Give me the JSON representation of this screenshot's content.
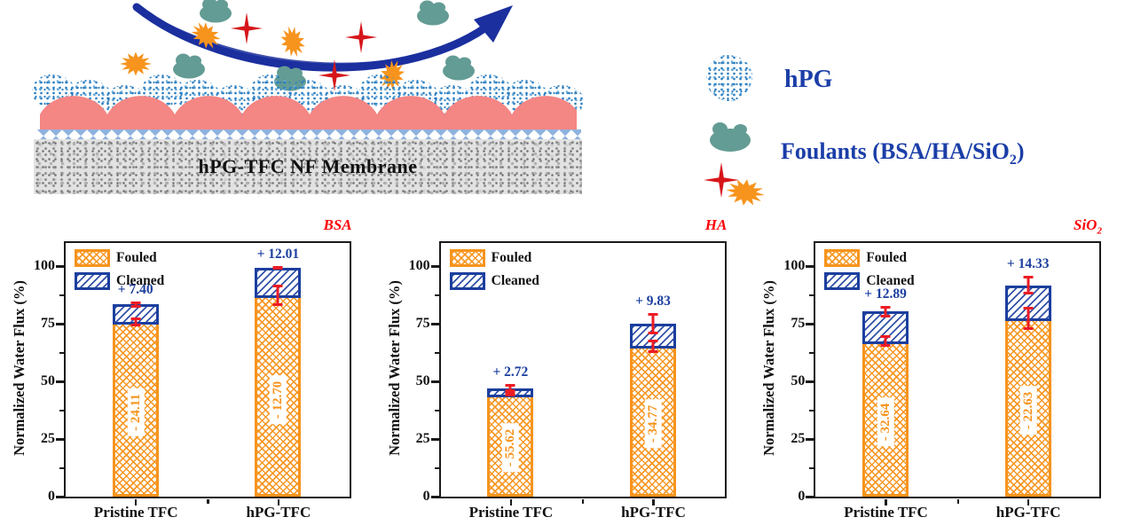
{
  "schematic": {
    "membrane_label": "hPG-TFC NF Membrane",
    "legend": {
      "hpg_label": "hPG",
      "foulants_label_pre": "Foulants (BSA/HA/SiO",
      "foulants_label_sub": "2",
      "foulants_label_post": ")"
    }
  },
  "colors": {
    "fouled_orange": "#F7941D",
    "cleaned_blue": "#1C3F9E",
    "error_bar_red": "#EC1C24",
    "panel_title_red": "#FB0207",
    "schematic_text_blue": "#1B3EA8",
    "arrow_blue": "#1B2F9E",
    "membrane_pink": "#F48684",
    "interlayer_blue": "#8FB2DF",
    "hpg_speckle_blue": "#2E7FC0",
    "foulant_teal": "#639C94",
    "foulant_star_red": "#D6161B",
    "foulant_burst_orange": "#F7941D",
    "axis_black": "#1A1A1A"
  },
  "chart_data": [
    {
      "type": "bar",
      "stacked": true,
      "title": "BSA",
      "title_sub": "",
      "ylabel": "Normalized Water Flux (%)",
      "ylim": [
        0,
        110
      ],
      "yticks": [
        "0",
        "25",
        "50",
        "75",
        "100"
      ],
      "ytick_values": [
        0,
        25,
        50,
        75,
        100
      ],
      "yticks_minor": [
        12.5,
        37.5,
        62.5,
        87.5
      ],
      "grid": false,
      "legend_position": "top-left",
      "legend": [
        "Fouled",
        "Cleaned"
      ],
      "categories": [
        "Pristine TFC",
        "hPG-TFC"
      ],
      "series": [
        {
          "name": "Fouled",
          "values": [
            75.89,
            87.3
          ],
          "bar_labels": [
            "- 24.11",
            "- 12.70"
          ],
          "errors": [
            2.0,
            4.5
          ]
        },
        {
          "name": "Cleaned",
          "values": [
            7.4,
            12.01
          ],
          "bar_labels": [
            "+ 7.40",
            "+ 12.01"
          ],
          "errors": [
            1.5,
            0.8
          ]
        }
      ],
      "totals": [
        83.29,
        99.31
      ]
    },
    {
      "type": "bar",
      "stacked": true,
      "title": "HA",
      "title_sub": "",
      "ylabel": "Normalized Water Flux (%)",
      "ylim": [
        0,
        110
      ],
      "yticks": [
        "0",
        "25",
        "50",
        "75",
        "100"
      ],
      "ytick_values": [
        0,
        25,
        50,
        75,
        100
      ],
      "yticks_minor": [
        12.5,
        37.5,
        62.5,
        87.5
      ],
      "grid": false,
      "legend_position": "top-left",
      "legend": [
        "Fouled",
        "Cleaned"
      ],
      "categories": [
        "Pristine TFC",
        "hPG-TFC"
      ],
      "series": [
        {
          "name": "Fouled",
          "values": [
            44.38,
            65.23
          ],
          "bar_labels": [
            "- 55.62",
            "- 34.77"
          ],
          "errors": [
            0.9,
            3.0
          ]
        },
        {
          "name": "Cleaned",
          "values": [
            2.72,
            9.83
          ],
          "bar_labels": [
            "+ 2.72",
            "+ 9.83"
          ],
          "errors": [
            1.8,
            4.5
          ]
        }
      ],
      "totals": [
        47.1,
        75.06
      ]
    },
    {
      "type": "bar",
      "stacked": true,
      "title": "SiO",
      "title_sub": "2",
      "ylabel": "Normalized Water Flux (%)",
      "ylim": [
        0,
        110
      ],
      "yticks": [
        "0",
        "25",
        "50",
        "75",
        "100"
      ],
      "ytick_values": [
        0,
        25,
        50,
        75,
        100
      ],
      "yticks_minor": [
        12.5,
        37.5,
        62.5,
        87.5
      ],
      "grid": false,
      "legend_position": "top-left",
      "legend": [
        "Fouled",
        "Cleaned"
      ],
      "categories": [
        "Pristine TFC",
        "hPG-TFC"
      ],
      "series": [
        {
          "name": "Fouled",
          "values": [
            67.36,
            77.37
          ],
          "bar_labels": [
            "- 32.64",
            "- 22.63"
          ],
          "errors": [
            2.5,
            5.0
          ]
        },
        {
          "name": "Cleaned",
          "values": [
            12.89,
            14.33
          ],
          "bar_labels": [
            "+ 12.89",
            "+ 14.33"
          ],
          "errors": [
            2.5,
            4.0
          ]
        }
      ],
      "totals": [
        80.25,
        91.7
      ]
    }
  ]
}
